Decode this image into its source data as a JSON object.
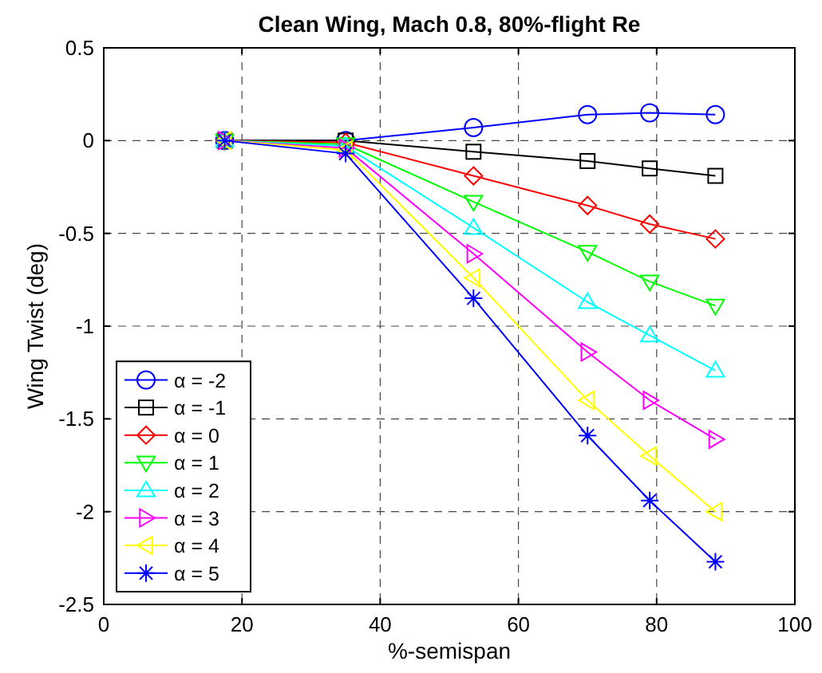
{
  "chart_data": {
    "type": "line",
    "title": "Clean Wing, Mach 0.8, 80%-flight Re",
    "xlabel": "%-semispan",
    "ylabel": "Wing Twist (deg)",
    "x": [
      17.5,
      35,
      53.5,
      70,
      79,
      88.5
    ],
    "xlim": [
      0,
      100
    ],
    "xticks": [
      0,
      20,
      40,
      60,
      80,
      100
    ],
    "ylim": [
      -2.5,
      0.5
    ],
    "yticks": [
      -2.5,
      -2,
      -1.5,
      -1,
      -0.5,
      0,
      0.5
    ],
    "grid": true,
    "legend": "bottom left",
    "line_style": "solid",
    "series": [
      {
        "name": "α = -2",
        "color": "#0000ff",
        "marker": "circle",
        "values": [
          0,
          0,
          0.07,
          0.14,
          0.15,
          0.14
        ]
      },
      {
        "name": "α = -1",
        "color": "#000000",
        "marker": "square",
        "values": [
          0,
          0,
          -0.06,
          -0.11,
          -0.15,
          -0.19
        ]
      },
      {
        "name": "α = 0",
        "color": "#ff0000",
        "marker": "diamond",
        "values": [
          0,
          -0.01,
          -0.19,
          -0.35,
          -0.45,
          -0.53
        ]
      },
      {
        "name": "α = 1",
        "color": "#00ff00",
        "marker": "triangle-down",
        "values": [
          0,
          -0.02,
          -0.33,
          -0.6,
          -0.76,
          -0.89
        ]
      },
      {
        "name": "α = 2",
        "color": "#00ffff",
        "marker": "triangle",
        "values": [
          0,
          -0.03,
          -0.47,
          -0.87,
          -1.05,
          -1.24
        ]
      },
      {
        "name": "α = 3",
        "color": "#ff00ff",
        "marker": "triangle-right",
        "values": [
          0,
          -0.04,
          -0.61,
          -1.14,
          -1.4,
          -1.61
        ]
      },
      {
        "name": "α = 4",
        "color": "#ffff00",
        "marker": "triangle-left",
        "values": [
          0,
          -0.05,
          -0.74,
          -1.4,
          -1.7,
          -2.0
        ]
      },
      {
        "name": "α = 5",
        "color": "#0000ff",
        "marker": "cross",
        "values": [
          0,
          -0.07,
          -0.85,
          -1.59,
          -1.94,
          -2.27
        ]
      }
    ]
  }
}
